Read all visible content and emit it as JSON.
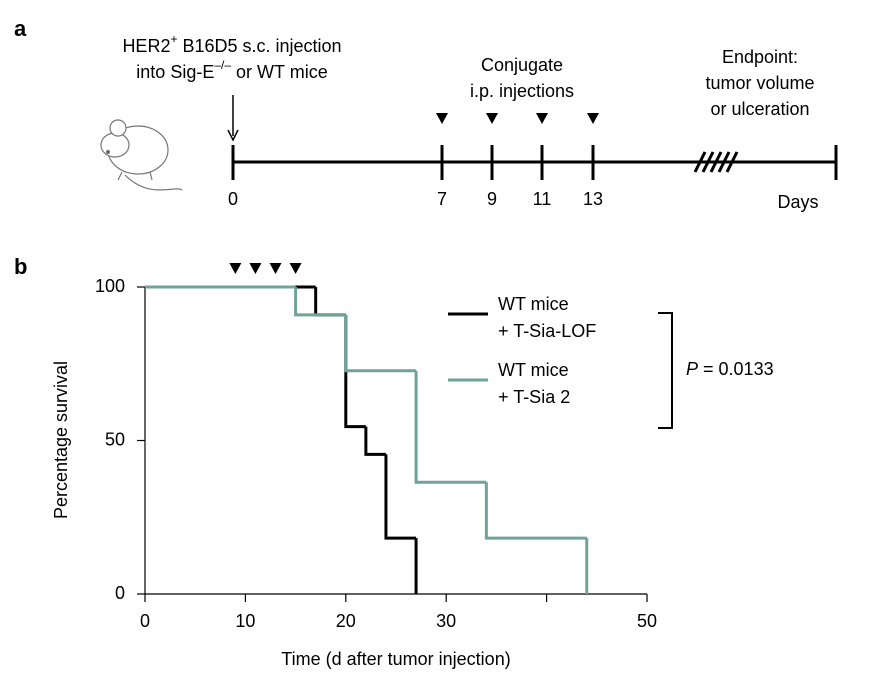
{
  "panel_a": {
    "label": "a",
    "injection_text": {
      "line1": "HER2",
      "line1_sup": "+",
      "line1_rest": " B16D5 s.c. injection",
      "line2": "into Sig-E",
      "line2_sup": "–/–",
      "line2_rest": " or WT mice"
    },
    "conjugate_text": [
      "Conjugate",
      "i.p. injections"
    ],
    "endpoint_text": [
      "Endpoint:",
      "tumor volume",
      "or ulceration"
    ],
    "timeline_ticks": [
      0,
      7,
      9,
      11,
      13
    ],
    "axis_label": "Days"
  },
  "chart_data": {
    "type": "step",
    "label": "b",
    "xlabel": "Time (d after tumor injection)",
    "ylabel": "Percentage survival",
    "xlim": [
      0,
      50
    ],
    "ylim": [
      0,
      100
    ],
    "xticks": [
      0,
      10,
      20,
      30,
      {
        "value": 40,
        "label": null
      },
      50
    ],
    "yticks": [
      0,
      50,
      100
    ],
    "injection_markers": [
      9,
      11,
      13,
      15
    ],
    "series": [
      {
        "name": [
          "WT mice",
          "+ T-Sia-LOF"
        ],
        "color": "#000000",
        "x": [
          0,
          17,
          20,
          22,
          24,
          27
        ],
        "values": [
          100,
          90.9,
          54.5,
          45.5,
          18.2,
          0
        ]
      },
      {
        "name": [
          "WT mice",
          "+ T-Sia 2"
        ],
        "color": "#6fa39a",
        "x": [
          0,
          15,
          20,
          27,
          34,
          44
        ],
        "values": [
          100,
          90.9,
          72.7,
          36.4,
          18.2,
          0
        ]
      }
    ],
    "annotation": {
      "italic": "P",
      "text": " = 0.0133"
    }
  }
}
